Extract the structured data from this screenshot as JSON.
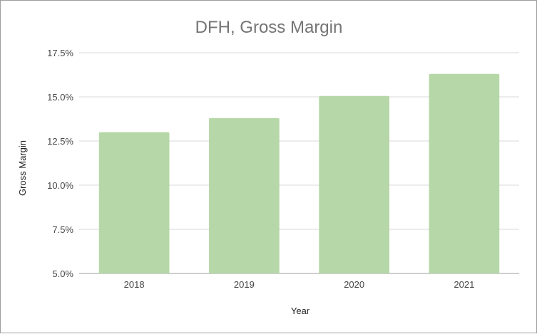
{
  "chart_data": {
    "type": "bar",
    "title": "DFH, Gross Margin",
    "xlabel": "Year",
    "ylabel": "Gross Margin",
    "categories": [
      "2018",
      "2019",
      "2020",
      "2021"
    ],
    "values": [
      13.0,
      13.8,
      15.05,
      16.3
    ],
    "ylim": [
      5.0,
      17.5
    ],
    "yticks": [
      "5.0%",
      "7.5%",
      "10.0%",
      "12.5%",
      "15.0%",
      "17.5%"
    ],
    "ytick_values": [
      5.0,
      7.5,
      10.0,
      12.5,
      15.0,
      17.5
    ],
    "grid": true,
    "legend": "none",
    "colors": {
      "bar": "#b6d7a8",
      "grid": "#d9d9d9",
      "baseline": "#9e9e9e"
    }
  }
}
